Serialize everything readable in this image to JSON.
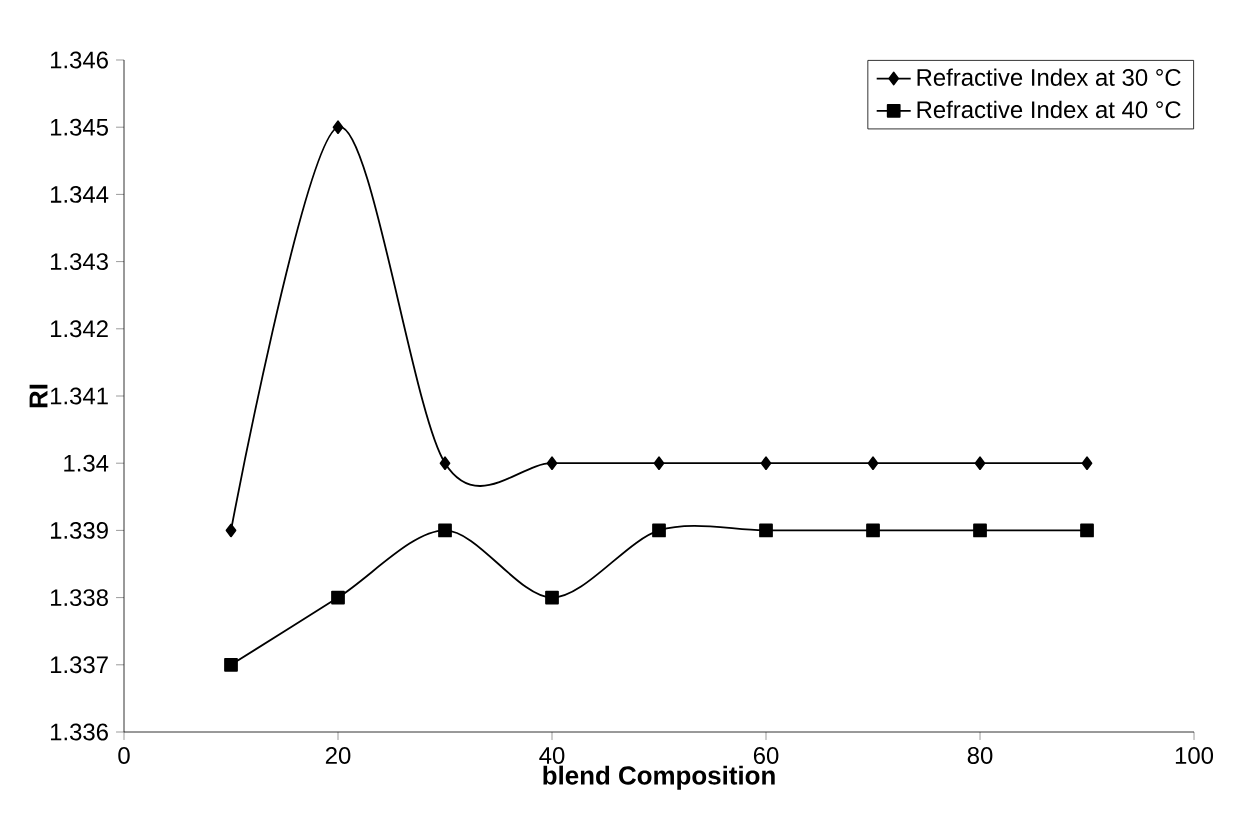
{
  "chart_data": {
    "type": "line",
    "xlabel": "blend Composition",
    "ylabel": "RI",
    "x": [
      10,
      20,
      30,
      40,
      50,
      60,
      70,
      80,
      90
    ],
    "series": [
      {
        "name": "Refractive Index at 30 °C",
        "color": "#000000",
        "marker": "diamond",
        "values": [
          1.339,
          1.345,
          1.34,
          1.34,
          1.34,
          1.34,
          1.34,
          1.34,
          1.34
        ]
      },
      {
        "name": "Refractive Index at 40 °C",
        "color": "#000000",
        "marker": "square",
        "values": [
          1.337,
          1.338,
          1.339,
          1.338,
          1.339,
          1.339,
          1.339,
          1.339,
          1.339
        ]
      }
    ],
    "xlim": [
      0,
      100
    ],
    "xticks": [
      0,
      20,
      40,
      60,
      80,
      100
    ],
    "ylim": [
      1.336,
      1.346
    ],
    "yticks": [
      1.336,
      1.337,
      1.338,
      1.339,
      1.34,
      1.341,
      1.342,
      1.343,
      1.344,
      1.345,
      1.346
    ],
    "grid": false,
    "legend": "top right",
    "line_style": "solid"
  }
}
